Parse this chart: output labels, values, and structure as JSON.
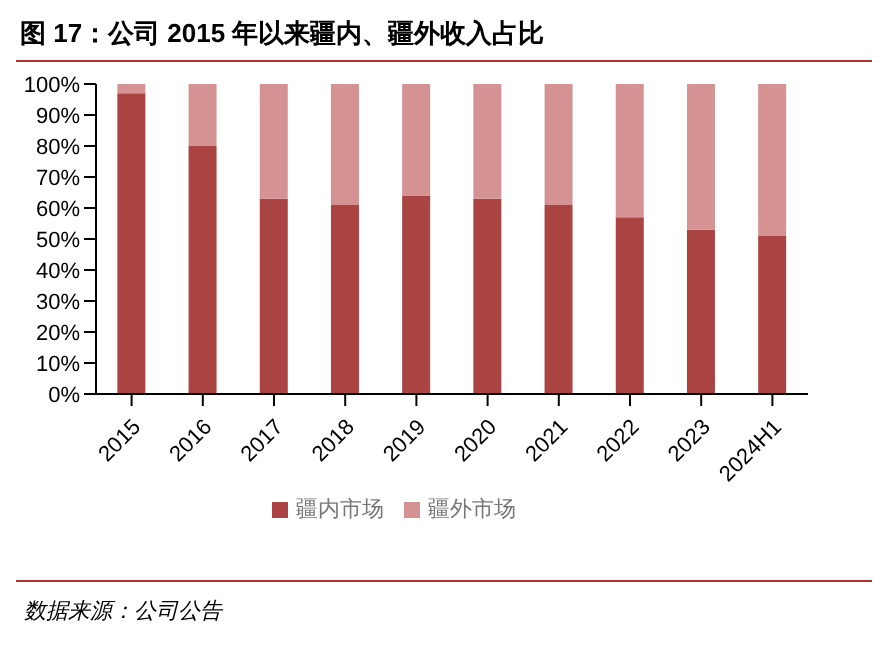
{
  "chart_data": {
    "type": "bar",
    "title": "图 17：公司 2015 年以来疆内、疆外收入占比",
    "categories": [
      "2015",
      "2016",
      "2017",
      "2018",
      "2019",
      "2020",
      "2021",
      "2022",
      "2023",
      "2024H1"
    ],
    "series": [
      {
        "name": "疆内市场",
        "color": "#a94442",
        "values": [
          97,
          80,
          63,
          61,
          64,
          63,
          61,
          57,
          53,
          51
        ]
      },
      {
        "name": "疆外市场",
        "color": "#d49292",
        "values": [
          3,
          20,
          37,
          39,
          36,
          37,
          39,
          43,
          47,
          49
        ]
      }
    ],
    "stacked": true,
    "ylim": [
      0,
      100
    ],
    "yticks": [
      {
        "value": 0,
        "label": "0%"
      },
      {
        "value": 10,
        "label": "10%"
      },
      {
        "value": 20,
        "label": "20%"
      },
      {
        "value": 30,
        "label": "30%"
      },
      {
        "value": 40,
        "label": "40%"
      },
      {
        "value": 50,
        "label": "50%"
      },
      {
        "value": 60,
        "label": "60%"
      },
      {
        "value": 70,
        "label": "70%"
      },
      {
        "value": 80,
        "label": "80%"
      },
      {
        "value": 90,
        "label": "90%"
      },
      {
        "value": 100,
        "label": "100%"
      }
    ],
    "legend": "bottom",
    "grid": false,
    "annotations": [
      "数据来源：公司公告"
    ]
  }
}
